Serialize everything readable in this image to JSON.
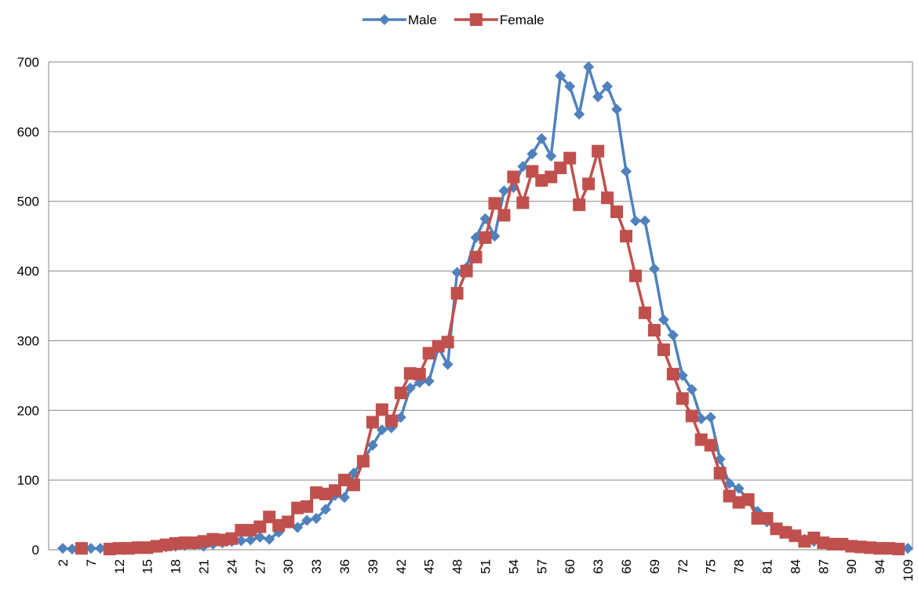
{
  "chart_data": {
    "type": "line",
    "categories": [
      "2",
      null,
      null,
      "7",
      null,
      null,
      "12",
      null,
      null,
      "15",
      null,
      null,
      "18",
      null,
      null,
      "21",
      null,
      null,
      "24",
      null,
      null,
      "27",
      null,
      null,
      "30",
      null,
      null,
      "33",
      null,
      null,
      "36",
      null,
      null,
      "39",
      null,
      null,
      "42",
      null,
      null,
      "45",
      null,
      null,
      "48",
      null,
      null,
      "51",
      null,
      null,
      "54",
      null,
      null,
      "57",
      null,
      null,
      "60",
      null,
      null,
      "63",
      null,
      null,
      "66",
      null,
      null,
      "69",
      null,
      null,
      "72",
      null,
      null,
      "75",
      null,
      null,
      "78",
      null,
      null,
      "81",
      null,
      null,
      "84",
      null,
      null,
      "87",
      null,
      null,
      "90",
      null,
      null,
      "94",
      null,
      null,
      "109"
    ],
    "series": [
      {
        "name": "Male",
        "color": "#4f81bd",
        "marker": "diamond",
        "values": [
          2,
          1,
          2,
          2,
          2,
          2,
          2,
          2,
          3,
          3,
          3,
          4,
          5,
          6,
          7,
          5,
          8,
          10,
          12,
          13,
          14,
          18,
          15,
          25,
          40,
          32,
          42,
          45,
          58,
          78,
          75,
          110,
          128,
          150,
          172,
          175,
          190,
          232,
          240,
          242,
          290,
          266,
          398,
          405,
          448,
          475,
          450,
          515,
          520,
          550,
          568,
          590,
          565,
          680,
          665,
          625,
          693,
          650,
          665,
          632,
          543,
          472,
          472,
          403,
          330,
          308,
          250,
          230,
          188,
          190,
          130,
          95,
          88,
          70,
          55,
          40,
          30,
          25,
          20,
          15,
          12,
          10,
          8,
          6,
          5,
          4,
          3,
          3,
          2,
          2,
          2
        ]
      },
      {
        "name": "Female",
        "color": "#c0504d",
        "marker": "square",
        "values": [
          null,
          null,
          2,
          null,
          null,
          1,
          2,
          2,
          3,
          3,
          5,
          7,
          9,
          10,
          10,
          12,
          15,
          14,
          16,
          28,
          28,
          33,
          47,
          35,
          40,
          60,
          62,
          82,
          80,
          85,
          100,
          93,
          127,
          183,
          201,
          185,
          225,
          253,
          252,
          282,
          292,
          298,
          368,
          400,
          420,
          448,
          497,
          480,
          535,
          498,
          543,
          530,
          535,
          548,
          562,
          495,
          525,
          572,
          505,
          485,
          450,
          393,
          340,
          315,
          287,
          252,
          217,
          192,
          158,
          150,
          110,
          77,
          68,
          72,
          45,
          45,
          30,
          25,
          20,
          12,
          17,
          10,
          8,
          8,
          5,
          4,
          3,
          2,
          2,
          1,
          null
        ]
      }
    ],
    "ylim": [
      0,
      700
    ],
    "yticks": [
      0,
      100,
      200,
      300,
      400,
      500,
      600,
      700
    ],
    "grid": true,
    "legend": "top"
  }
}
